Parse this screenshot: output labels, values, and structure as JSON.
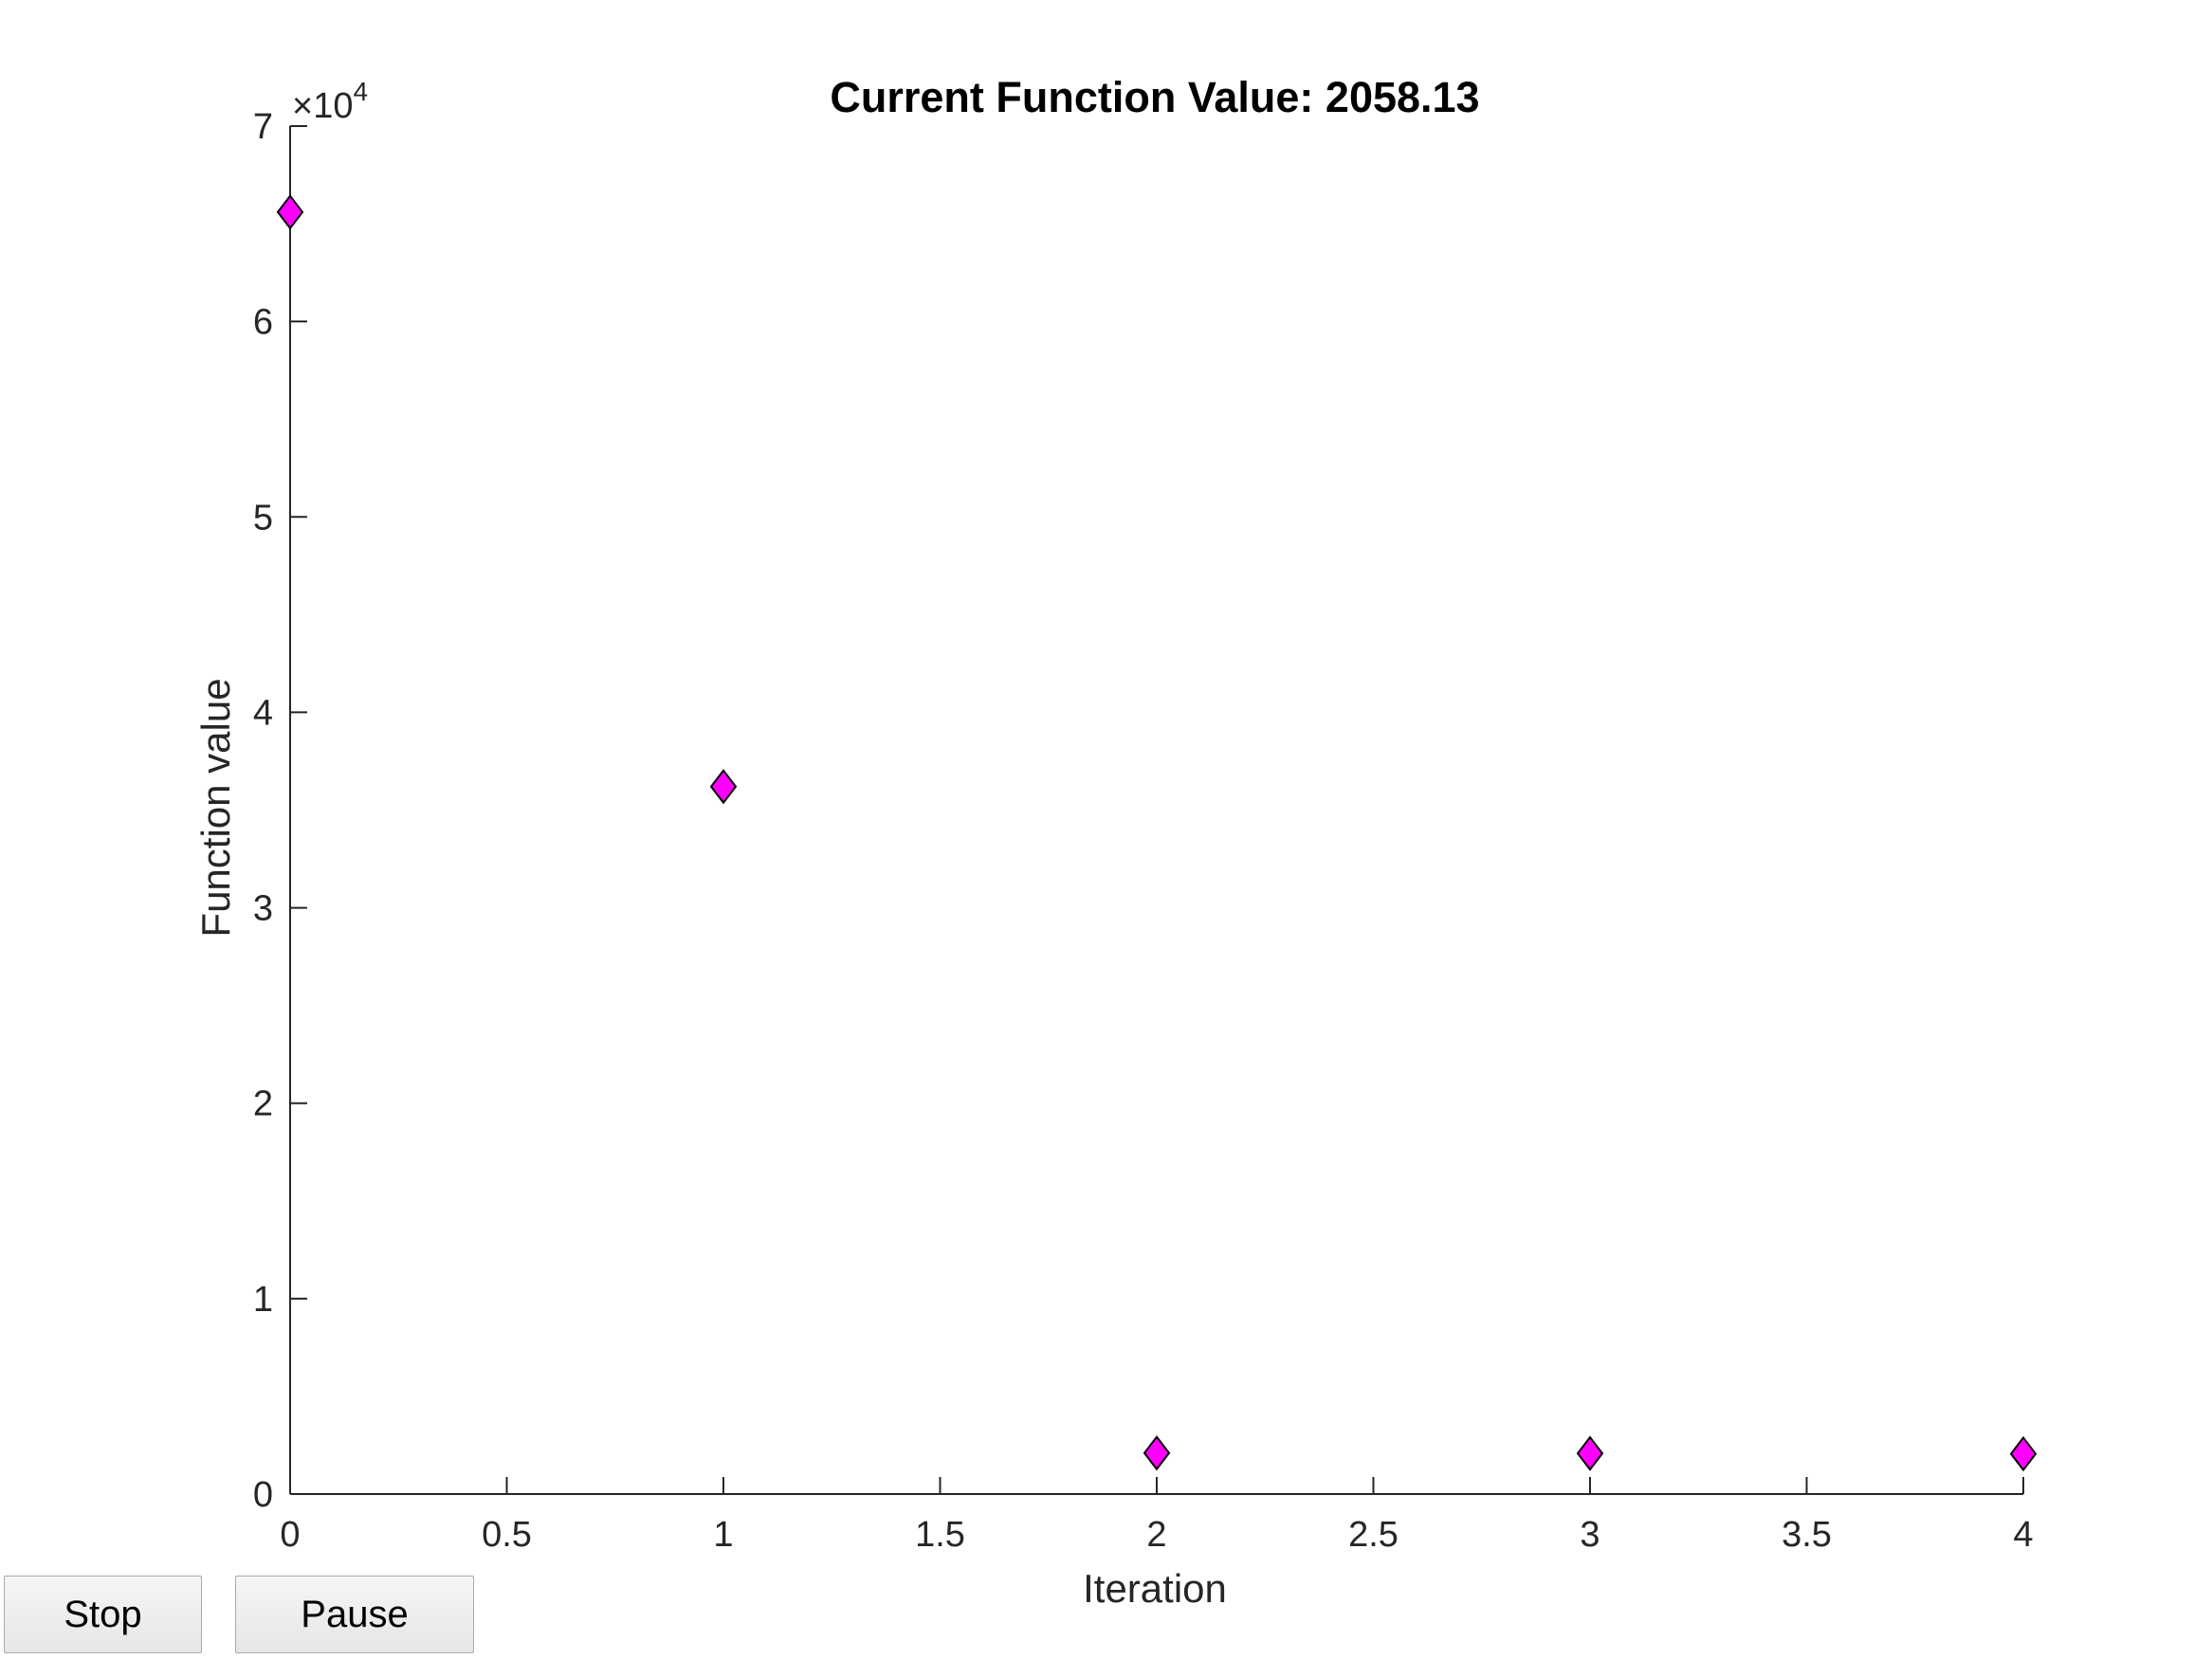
{
  "controls": {
    "stop_label": "Stop",
    "pause_label": "Pause"
  },
  "chart_data": {
    "type": "scatter",
    "title": "Current Function Value: 2058.13",
    "xlabel": "Iteration",
    "ylabel": "Function value",
    "y_exponent_label": "×10",
    "y_exponent_power": "4",
    "xlim": [
      0,
      4
    ],
    "ylim": [
      0,
      70000
    ],
    "x_ticks": [
      0,
      0.5,
      1,
      1.5,
      2,
      2.5,
      3,
      3.5,
      4
    ],
    "x_tick_labels": [
      "0",
      "0.5",
      "1",
      "1.5",
      "2",
      "2.5",
      "3",
      "3.5",
      "4"
    ],
    "y_ticks": [
      0,
      10000,
      20000,
      30000,
      40000,
      50000,
      60000,
      70000
    ],
    "y_tick_labels": [
      "0",
      "1",
      "2",
      "3",
      "4",
      "5",
      "6",
      "7"
    ],
    "series": [
      {
        "marker": "diamond",
        "color": "#ff00ff",
        "edge_color": "#000000",
        "x": [
          0,
          1,
          2,
          3,
          4
        ],
        "y": [
          65600,
          36200,
          2100,
          2080,
          2058.13
        ]
      }
    ],
    "grid": false
  }
}
